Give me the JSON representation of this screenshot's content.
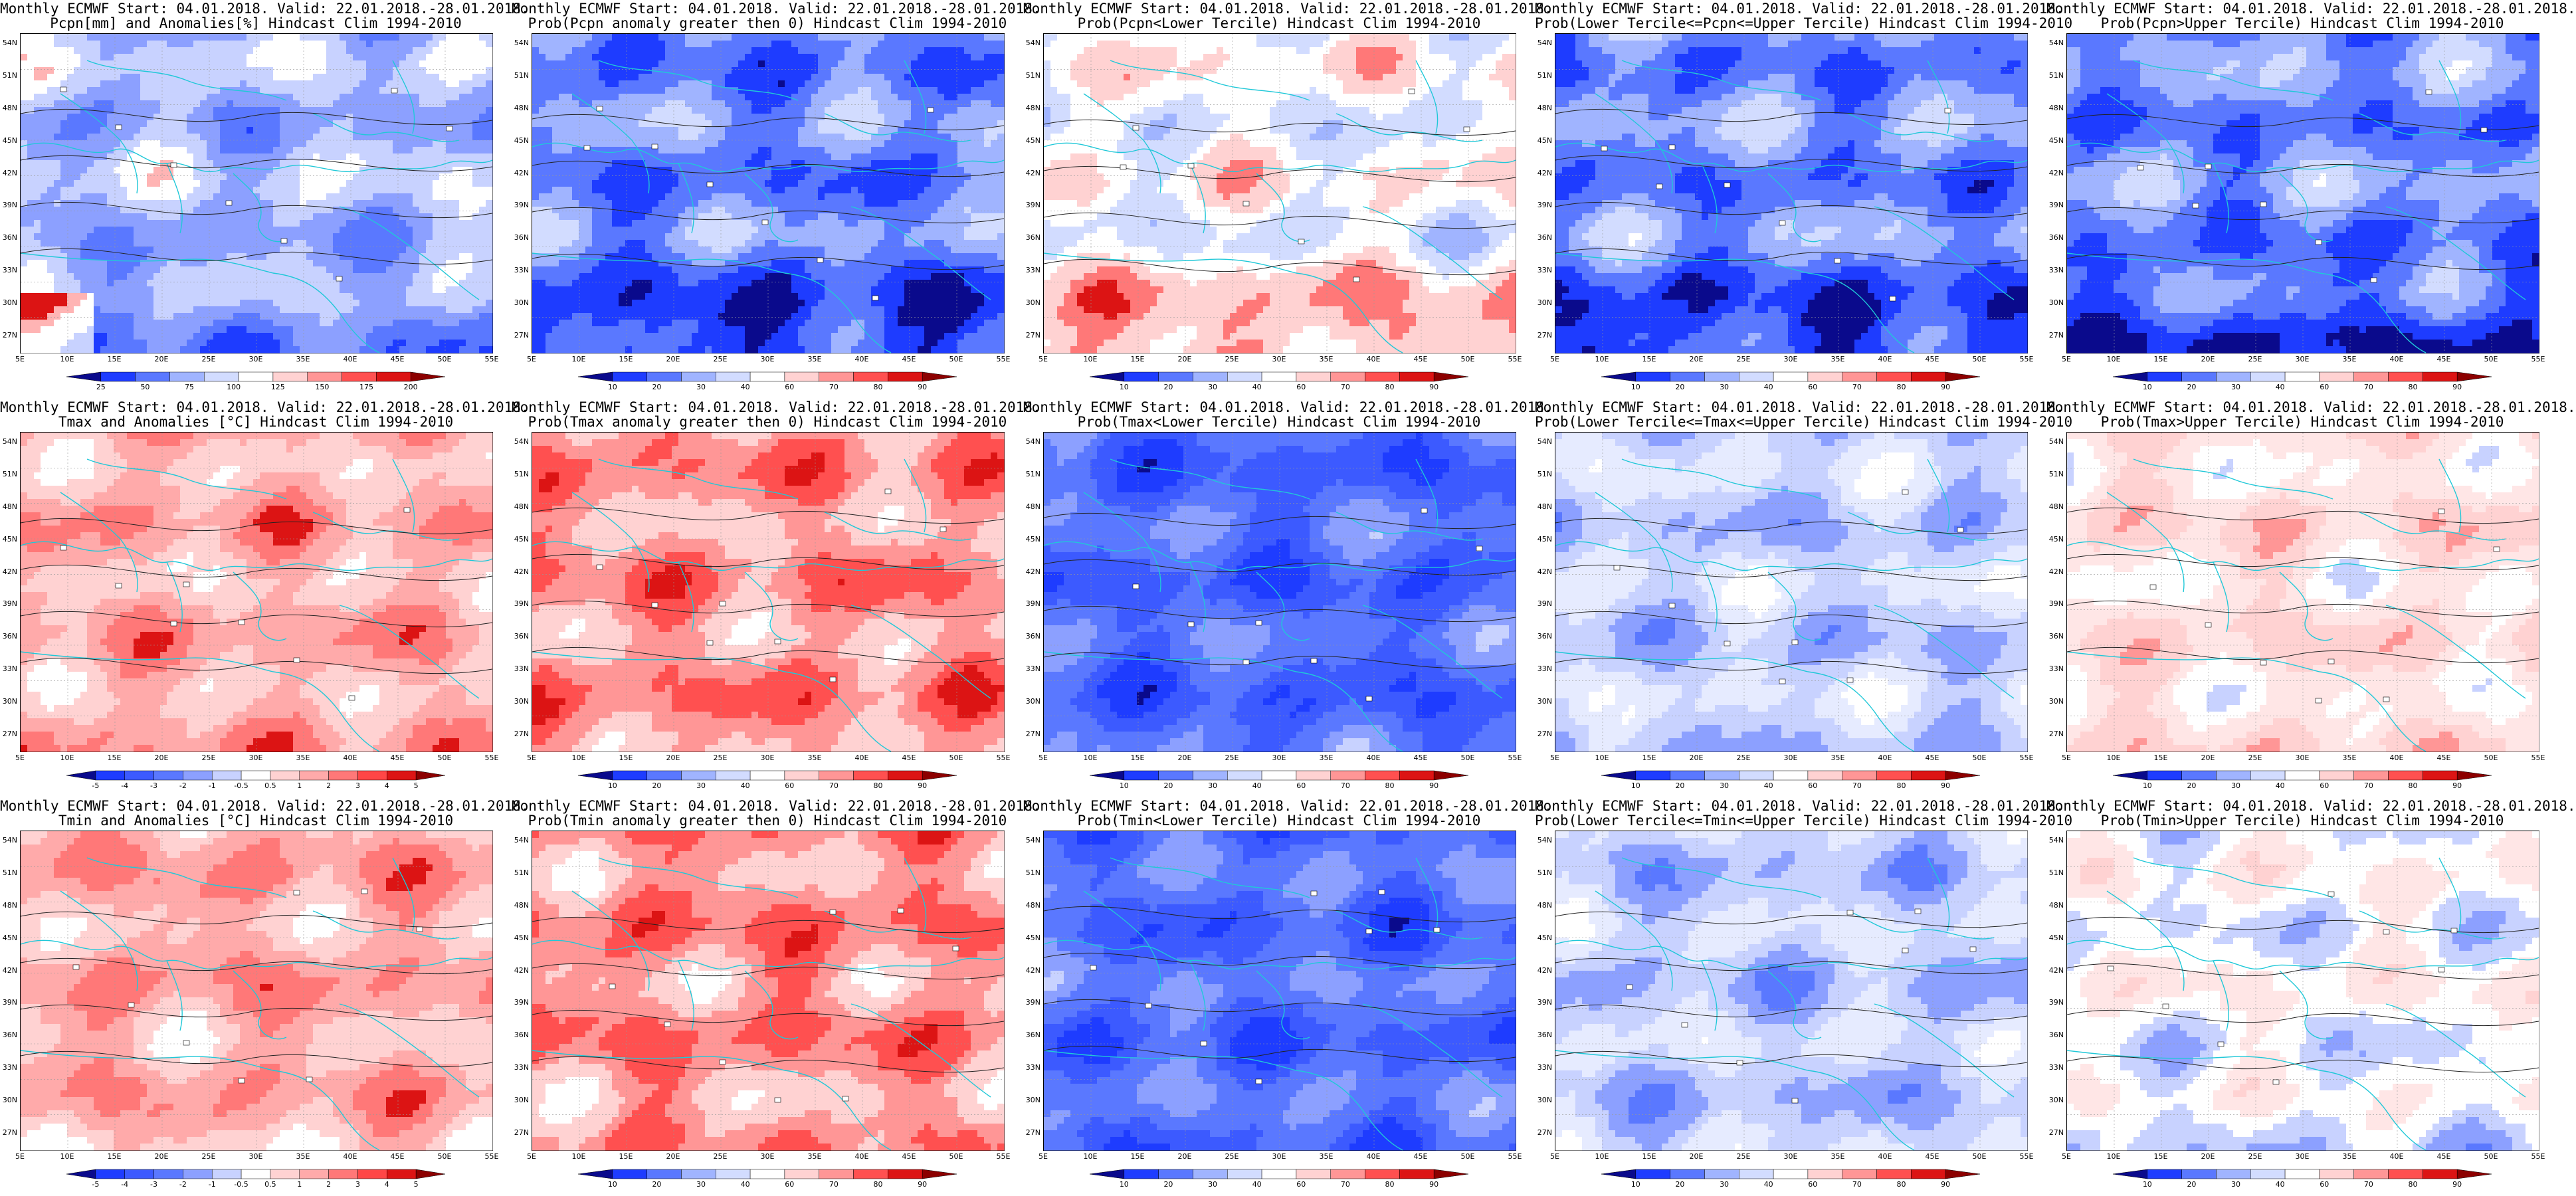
{
  "layout": {
    "rows": 3,
    "cols": 5
  },
  "x_ticks": [
    "5E",
    "10E",
    "15E",
    "20E",
    "25E",
    "30E",
    "35E",
    "40E",
    "45E",
    "50E",
    "55E"
  ],
  "y_ticks": [
    "54N",
    "51N",
    "48N",
    "45N",
    "42N",
    "39N",
    "36N",
    "33N",
    "30N",
    "27N"
  ],
  "colorbars": {
    "prob": {
      "labels": [
        "10",
        "20",
        "30",
        "40",
        "60",
        "70",
        "80",
        "90"
      ],
      "colors": [
        "#0a0a8c",
        "#1e3cff",
        "#5a78ff",
        "#a0b4ff",
        "#d2dcff",
        "#ffffff",
        "#ffd2d2",
        "#ff9696",
        "#ff5050",
        "#dc1414",
        "#8c0000"
      ]
    },
    "pcpn": {
      "labels": [
        "25",
        "50",
        "75",
        "100",
        "125",
        "150",
        "175",
        "200"
      ],
      "colors": [
        "#0a0a8c",
        "#1e3cff",
        "#5a78ff",
        "#a0b4ff",
        "#d2dcff",
        "#ffffff",
        "#ffd2d2",
        "#ff9696",
        "#ff5050",
        "#dc1414",
        "#8c0000"
      ]
    },
    "temp": {
      "labels": [
        "-5",
        "-4",
        "-3",
        "-2",
        "-1",
        "-0.5",
        "0.5",
        "1",
        "2",
        "3",
        "4",
        "5"
      ],
      "colors": [
        "#0a0a8c",
        "#1e3cff",
        "#3c5aff",
        "#5a78ff",
        "#8ca0ff",
        "#c8d2ff",
        "#ffffff",
        "#ffd2d2",
        "#ffaaaa",
        "#ff7878",
        "#ff4646",
        "#dc1414",
        "#8c0000"
      ]
    }
  },
  "panels": [
    {
      "title1": "Monthly ECMWF Start: 04.01.2018. Valid: 22.01.2018.-28.01.2018.",
      "title2": "Pcpn[mm] and Anomalies[%] Hindcast Clim 1994-2010",
      "cbar": "pcpn",
      "palette": [
        "#1e3cff",
        "#5a78ff",
        "#8ca0ff",
        "#c8d2ff",
        "#ffffff",
        "#ffb4b4",
        "#dc1414"
      ],
      "bias": -0.15,
      "south": -0.35,
      "blobs": "red-sw"
    },
    {
      "title1": "Monthly ECMWF Start: 04.01.2018. Valid: 22.01.2018.-28.01.2018.",
      "title2": "Prob(Pcpn anomaly greater then 0) Hindcast Clim 1994-2010",
      "cbar": "prob",
      "palette": [
        "#0a0a8c",
        "#1e3cff",
        "#5a78ff",
        "#a0b4ff",
        "#d2dcff",
        "#ffffff",
        "#ffd2d2"
      ],
      "bias": -0.25,
      "south": -0.55,
      "blobs": ""
    },
    {
      "title1": "Monthly ECMWF Start: 04.01.2018. Valid: 22.01.2018.-28.01.2018.",
      "title2": "Prob(Pcpn<Lower Tercile) Hindcast Clim 1994-2010",
      "cbar": "prob",
      "palette": [
        "#5a78ff",
        "#a0b4ff",
        "#d2dcff",
        "#ffffff",
        "#ffd2d2",
        "#ff7878",
        "#dc1414"
      ],
      "bias": -0.05,
      "south": 0.65,
      "blobs": ""
    },
    {
      "title1": "Monthly ECMWF Start: 04.01.2018. Valid: 22.01.2018.-28.01.2018.",
      "title2": "Prob(Lower Tercile<=Pcpn<=Upper Tercile) Hindcast Clim 1994-2010",
      "cbar": "prob",
      "palette": [
        "#0a0a8c",
        "#1e3cff",
        "#5a78ff",
        "#a0b4ff",
        "#d2dcff",
        "#ffffff",
        "#ffd2d2"
      ],
      "bias": -0.2,
      "south": -0.6,
      "blobs": ""
    },
    {
      "title1": "Monthly ECMWF Start: 04.01.2018. Valid: 22.01.2018.-28.01.2018.",
      "title2": "Prob(Pcpn>Upper Tercile) Hindcast Clim 1994-2010",
      "cbar": "prob",
      "palette": [
        "#0a0a8c",
        "#1e3cff",
        "#5a78ff",
        "#a0b4ff",
        "#d2dcff",
        "#ffffff",
        "#ffd2d2"
      ],
      "bias": -0.2,
      "south": -0.55,
      "blobs": ""
    },
    {
      "title1": "Monthly ECMWF Start: 04.01.2018. Valid: 22.01.2018.-28.01.2018.",
      "title2": "Tmax and Anomalies [°C] Hindcast Clim 1994-2010",
      "cbar": "temp",
      "palette": [
        "#8ca0ff",
        "#c8d2ff",
        "#ffffff",
        "#ffd2d2",
        "#ffaaaa",
        "#ff7878",
        "#dc1414"
      ],
      "bias": 0.25,
      "south": 0.05,
      "blobs": ""
    },
    {
      "title1": "Monthly ECMWF Start: 04.01.2018. Valid: 22.01.2018.-28.01.2018.",
      "title2": "Prob(Tmax anomaly greater then 0) Hindcast Clim 1994-2010",
      "cbar": "prob",
      "palette": [
        "#a0b4ff",
        "#d2dcff",
        "#ffffff",
        "#ffd2d2",
        "#ff9696",
        "#ff5050",
        "#dc1414"
      ],
      "bias": 0.3,
      "south": 0.05,
      "blobs": ""
    },
    {
      "title1": "Monthly ECMWF Start: 04.01.2018. Valid: 22.01.2018.-28.01.2018.",
      "title2": "Prob(Tmax<Lower Tercile) Hindcast Clim 1994-2010",
      "cbar": "prob",
      "palette": [
        "#0a0a8c",
        "#1e3cff",
        "#3c5aff",
        "#5a78ff",
        "#8ca0ff",
        "#c8d2ff",
        "#ffffff"
      ],
      "bias": -0.15,
      "south": 0.0,
      "blobs": ""
    },
    {
      "title1": "Monthly ECMWF Start: 04.01.2018. Valid: 22.01.2018.-28.01.2018.",
      "title2": "Prob(Lower Tercile<=Tmax<=Upper Tercile) Hindcast Clim 1994-2010",
      "cbar": "prob",
      "palette": [
        "#1e3cff",
        "#5a78ff",
        "#8ca0ff",
        "#c8d2ff",
        "#e6ebff",
        "#ffffff",
        "#ffe6e6"
      ],
      "bias": 0.05,
      "south": 0.0,
      "blobs": ""
    },
    {
      "title1": "Monthly ECMWF Start: 04.01.2018. Valid: 22.01.2018.-28.01.2018.",
      "title2": "Prob(Tmax>Upper Tercile) Hindcast Clim 1994-2010",
      "cbar": "prob",
      "palette": [
        "#8ca0ff",
        "#c8d2ff",
        "#ffffff",
        "#ffe6e6",
        "#ffd2d2",
        "#ff9696",
        "#ff5050"
      ],
      "bias": 0.05,
      "south": 0.0,
      "blobs": ""
    },
    {
      "title1": "Monthly ECMWF Start: 04.01.2018. Valid: 22.01.2018.-28.01.2018.",
      "title2": "Tmin and Anomalies [°C] Hindcast Clim 1994-2010",
      "cbar": "temp",
      "palette": [
        "#8ca0ff",
        "#c8d2ff",
        "#ffffff",
        "#ffd2d2",
        "#ffaaaa",
        "#ff7878",
        "#dc1414"
      ],
      "bias": 0.3,
      "south": -0.1,
      "blobs": ""
    },
    {
      "title1": "Monthly ECMWF Start: 04.01.2018. Valid: 22.01.2018.-28.01.2018.",
      "title2": "Prob(Tmin anomaly greater then 0) Hindcast Clim 1994-2010",
      "cbar": "prob",
      "palette": [
        "#a0b4ff",
        "#d2dcff",
        "#ffffff",
        "#ffd2d2",
        "#ff9696",
        "#ff5050",
        "#dc1414"
      ],
      "bias": 0.35,
      "south": -0.1,
      "blobs": ""
    },
    {
      "title1": "Monthly ECMWF Start: 04.01.2018. Valid: 22.01.2018.-28.01.2018.",
      "title2": "Prob(Tmin<Lower Tercile) Hindcast Clim 1994-2010",
      "cbar": "prob",
      "palette": [
        "#0a0a8c",
        "#1e3cff",
        "#3c5aff",
        "#5a78ff",
        "#8ca0ff",
        "#c8d2ff",
        "#ffffff"
      ],
      "bias": -0.1,
      "south": 0.0,
      "blobs": ""
    },
    {
      "title1": "Monthly ECMWF Start: 04.01.2018. Valid: 22.01.2018.-28.01.2018.",
      "title2": "Prob(Lower Tercile<=Tmin<=Upper Tercile) Hindcast Clim 1994-2010",
      "cbar": "prob",
      "palette": [
        "#1e3cff",
        "#5a78ff",
        "#8ca0ff",
        "#c8d2ff",
        "#e6ebff",
        "#ffffff",
        "#ffe6e6"
      ],
      "bias": 0.0,
      "south": 0.0,
      "blobs": ""
    },
    {
      "title1": "Monthly ECMWF Start: 04.01.2018. Valid: 22.01.2018.-28.01.2018.",
      "title2": "Prob(Tmin>Upper Tercile) Hindcast Clim 1994-2010",
      "cbar": "prob",
      "palette": [
        "#5a78ff",
        "#8ca0ff",
        "#c8d2ff",
        "#ffffff",
        "#ffe6e6",
        "#ffd2d2",
        "#ff9696"
      ],
      "bias": 0.0,
      "south": -0.2,
      "blobs": ""
    }
  ]
}
